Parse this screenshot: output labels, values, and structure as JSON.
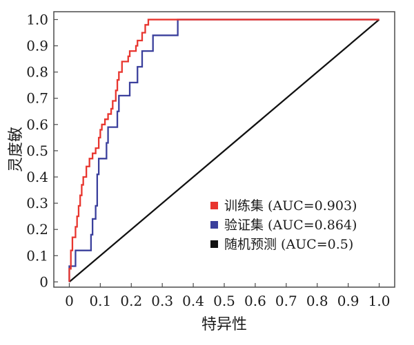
{
  "chart_data": {
    "type": "line",
    "xlabel": "特异性",
    "ylabel": "灵度敏",
    "xlim": [
      -0.05,
      1.05
    ],
    "ylim": [
      -0.02,
      1.03
    ],
    "xticks": [
      0,
      0.1,
      0.2,
      0.3,
      0.4,
      0.5,
      0.6,
      0.7,
      0.8,
      0.9,
      1.0
    ],
    "xtick_labels": [
      "0",
      "0.1",
      "0.2",
      "0.3",
      "0.4",
      "0.5",
      "0.6",
      "0.7",
      "0.8",
      "0.9",
      "1.0"
    ],
    "yticks": [
      0,
      0.1,
      0.2,
      0.3,
      0.4,
      0.5,
      0.6,
      0.7,
      0.8,
      0.9,
      1.0
    ],
    "ytick_labels": [
      "0",
      "0.1",
      "0.2",
      "0.3",
      "0.4",
      "0.5",
      "0.6",
      "0.7",
      "0.8",
      "0.9",
      "1.0"
    ],
    "grid": false,
    "legend_position": "bottom-right",
    "series": [
      {
        "name": "训练集 (AUC=0.903)",
        "color": "#e8352e",
        "points": [
          [
            0,
            0
          ],
          [
            0,
            0.05
          ],
          [
            0.005,
            0.05
          ],
          [
            0.005,
            0.12
          ],
          [
            0.01,
            0.12
          ],
          [
            0.01,
            0.17
          ],
          [
            0.02,
            0.17
          ],
          [
            0.02,
            0.21
          ],
          [
            0.025,
            0.21
          ],
          [
            0.025,
            0.25
          ],
          [
            0.03,
            0.25
          ],
          [
            0.03,
            0.29
          ],
          [
            0.035,
            0.29
          ],
          [
            0.035,
            0.33
          ],
          [
            0.04,
            0.33
          ],
          [
            0.04,
            0.37
          ],
          [
            0.045,
            0.37
          ],
          [
            0.045,
            0.4
          ],
          [
            0.055,
            0.4
          ],
          [
            0.055,
            0.44
          ],
          [
            0.065,
            0.44
          ],
          [
            0.065,
            0.47
          ],
          [
            0.075,
            0.47
          ],
          [
            0.075,
            0.49
          ],
          [
            0.085,
            0.49
          ],
          [
            0.085,
            0.51
          ],
          [
            0.095,
            0.51
          ],
          [
            0.095,
            0.55
          ],
          [
            0.1,
            0.55
          ],
          [
            0.1,
            0.58
          ],
          [
            0.105,
            0.58
          ],
          [
            0.105,
            0.6
          ],
          [
            0.115,
            0.6
          ],
          [
            0.115,
            0.62
          ],
          [
            0.125,
            0.62
          ],
          [
            0.125,
            0.64
          ],
          [
            0.135,
            0.64
          ],
          [
            0.135,
            0.66
          ],
          [
            0.14,
            0.66
          ],
          [
            0.14,
            0.69
          ],
          [
            0.15,
            0.69
          ],
          [
            0.15,
            0.73
          ],
          [
            0.155,
            0.73
          ],
          [
            0.155,
            0.77
          ],
          [
            0.16,
            0.77
          ],
          [
            0.16,
            0.8
          ],
          [
            0.17,
            0.8
          ],
          [
            0.17,
            0.84
          ],
          [
            0.19,
            0.84
          ],
          [
            0.19,
            0.86
          ],
          [
            0.195,
            0.86
          ],
          [
            0.195,
            0.88
          ],
          [
            0.215,
            0.88
          ],
          [
            0.215,
            0.9
          ],
          [
            0.22,
            0.9
          ],
          [
            0.22,
            0.92
          ],
          [
            0.235,
            0.92
          ],
          [
            0.235,
            0.95
          ],
          [
            0.245,
            0.95
          ],
          [
            0.245,
            0.98
          ],
          [
            0.255,
            0.98
          ],
          [
            0.255,
            1.0
          ],
          [
            1.0,
            1.0
          ]
        ]
      },
      {
        "name": "验证集 (AUC=0.864)",
        "color": "#3a3f9c",
        "points": [
          [
            0,
            0
          ],
          [
            0,
            0.06
          ],
          [
            0.02,
            0.06
          ],
          [
            0.02,
            0.12
          ],
          [
            0.07,
            0.12
          ],
          [
            0.07,
            0.18
          ],
          [
            0.075,
            0.18
          ],
          [
            0.075,
            0.24
          ],
          [
            0.085,
            0.24
          ],
          [
            0.085,
            0.29
          ],
          [
            0.09,
            0.29
          ],
          [
            0.09,
            0.41
          ],
          [
            0.095,
            0.41
          ],
          [
            0.095,
            0.47
          ],
          [
            0.12,
            0.47
          ],
          [
            0.12,
            0.53
          ],
          [
            0.125,
            0.53
          ],
          [
            0.125,
            0.59
          ],
          [
            0.155,
            0.59
          ],
          [
            0.155,
            0.65
          ],
          [
            0.16,
            0.65
          ],
          [
            0.16,
            0.71
          ],
          [
            0.195,
            0.71
          ],
          [
            0.195,
            0.76
          ],
          [
            0.22,
            0.76
          ],
          [
            0.22,
            0.82
          ],
          [
            0.235,
            0.82
          ],
          [
            0.235,
            0.88
          ],
          [
            0.27,
            0.88
          ],
          [
            0.27,
            0.94
          ],
          [
            0.35,
            0.94
          ],
          [
            0.35,
            1.0
          ],
          [
            1.0,
            1.0
          ]
        ]
      },
      {
        "name": "随机预测 (AUC=0.5)",
        "color": "#111111",
        "points": [
          [
            0,
            0
          ],
          [
            1.0,
            1.0
          ]
        ]
      }
    ]
  }
}
